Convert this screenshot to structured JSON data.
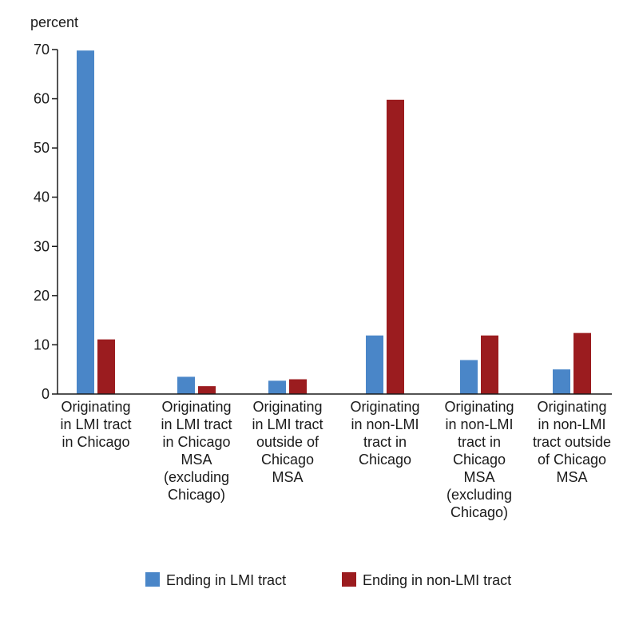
{
  "chart_data": {
    "type": "bar",
    "ylabel": "percent",
    "ylim": [
      0,
      70
    ],
    "yticks": [
      0,
      10,
      20,
      30,
      40,
      50,
      60,
      70
    ],
    "grid": false,
    "legend_position": "bottom",
    "categories": [
      [
        "Originating",
        "in LMI tract",
        "in Chicago"
      ],
      [
        "Originating",
        "in LMI tract",
        "in Chicago",
        "MSA",
        "(excluding",
        "Chicago)"
      ],
      [
        "Originating",
        "in LMI tract",
        "outside of",
        "Chicago",
        "MSA"
      ],
      [
        "Originating",
        "in non-LMI",
        "tract in",
        "Chicago"
      ],
      [
        "Originating",
        "in non-LMI",
        "tract in",
        "Chicago",
        "MSA",
        "(excluding",
        "Chicago)"
      ],
      [
        "Originating",
        "in non-LMI",
        "tract outside",
        "of Chicago",
        "MSA"
      ]
    ],
    "series": [
      {
        "name": "Ending in LMI tract",
        "color": "#4a86c8",
        "values": [
          69.8,
          3.5,
          2.7,
          11.9,
          6.9,
          5.0
        ]
      },
      {
        "name": "Ending in non-LMI tract",
        "color": "#9b1c1f",
        "values": [
          11.1,
          1.6,
          3.0,
          59.8,
          11.9,
          12.4
        ]
      }
    ]
  }
}
